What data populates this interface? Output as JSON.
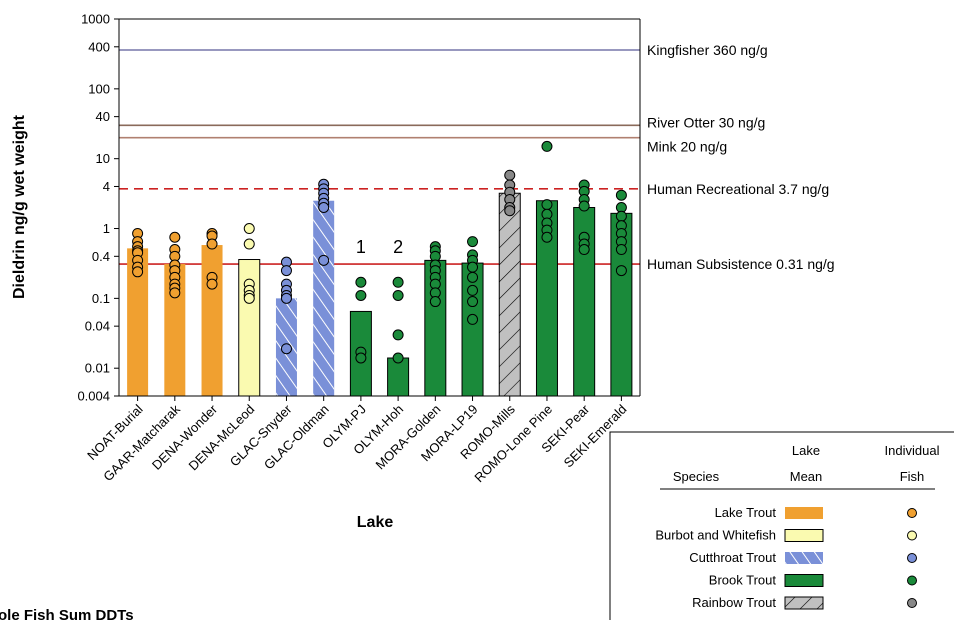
{
  "chart_data": {
    "type": "bar",
    "yscale": "log",
    "ylim": [
      0.004,
      1000
    ],
    "ylabel": "Dieldrin ng/g wet weight",
    "xlabel": "Lake",
    "yticks": [
      {
        "value": 0.004,
        "label": "0.004"
      },
      {
        "value": 0.01,
        "label": "0.01"
      },
      {
        "value": 0.04,
        "label": "0.04"
      },
      {
        "value": 0.1,
        "label": "0.1"
      },
      {
        "value": 0.4,
        "label": "0.4"
      },
      {
        "value": 1,
        "label": "1"
      },
      {
        "value": 4,
        "label": "4"
      },
      {
        "value": 10,
        "label": "10"
      },
      {
        "value": 40,
        "label": "40"
      },
      {
        "value": 100,
        "label": "100"
      },
      {
        "value": 400,
        "label": "400"
      },
      {
        "value": 1000,
        "label": "1000"
      }
    ],
    "categories": [
      "NOAT-Burial",
      "GAAR-Matcharak",
      "DENA-Wonder",
      "DENA-McLeod",
      "GLAC-Snyder",
      "GLAC-Oldman",
      "OLYM-PJ",
      "OLYM-Hoh",
      "MORA-Golden",
      "MORA-LP19",
      "ROMO-Mills",
      "ROMO-Lone Pine",
      "SEKI-Pear",
      "SEKI-Emerald"
    ],
    "bars": [
      {
        "lake": "NOAT-Burial",
        "species": "lake_trout",
        "mean": 0.52,
        "fish": [
          0.85,
          0.65,
          0.55,
          0.48,
          0.45,
          0.35,
          0.28,
          0.24
        ]
      },
      {
        "lake": "GAAR-Matcharak",
        "species": "lake_trout",
        "mean": 0.31,
        "fish": [
          0.75,
          0.5,
          0.4,
          0.3,
          0.25,
          0.2,
          0.16,
          0.14,
          0.12
        ]
      },
      {
        "lake": "DENA-Wonder",
        "species": "lake_trout",
        "mean": 0.58,
        "fish": [
          0.85,
          0.78,
          0.6,
          0.2,
          0.16
        ]
      },
      {
        "lake": "DENA-McLeod",
        "species": "burbot_whitefish",
        "mean": 0.36,
        "fish": [
          1.0,
          0.6,
          0.16,
          0.13,
          0.11,
          0.1
        ]
      },
      {
        "lake": "GLAC-Snyder",
        "species": "cutthroat_trout",
        "mean": 0.1,
        "fish": [
          0.33,
          0.25,
          0.16,
          0.13,
          0.11,
          0.1,
          0.019
        ]
      },
      {
        "lake": "GLAC-Oldman",
        "species": "cutthroat_trout",
        "mean": 2.5,
        "fish": [
          4.3,
          3.7,
          3.2,
          2.7,
          2.3,
          2.0,
          0.35
        ]
      },
      {
        "lake": "OLYM-PJ",
        "species": "brook_trout",
        "mean": 0.065,
        "fish": [
          0.17,
          0.11,
          0.017,
          0.014
        ]
      },
      {
        "lake": "OLYM-Hoh",
        "species": "brook_trout",
        "mean": 0.014,
        "fish": [
          0.17,
          0.11,
          0.03,
          0.014
        ]
      },
      {
        "lake": "MORA-Golden",
        "species": "brook_trout",
        "mean": 0.35,
        "fish": [
          0.55,
          0.48,
          0.4,
          0.3,
          0.25,
          0.2,
          0.16,
          0.12,
          0.09
        ]
      },
      {
        "lake": "MORA-LP19",
        "species": "brook_trout",
        "mean": 0.32,
        "fish": [
          0.65,
          0.42,
          0.35,
          0.28,
          0.2,
          0.13,
          0.09,
          0.05
        ]
      },
      {
        "lake": "ROMO-Mills",
        "species": "rainbow_trout",
        "mean": 3.2,
        "fish": [
          5.8,
          4.2,
          3.3,
          2.6,
          2.0,
          1.8
        ]
      },
      {
        "lake": "ROMO-Lone Pine",
        "species": "brook_trout",
        "mean": 2.5,
        "fish": [
          15,
          2.2,
          1.6,
          1.2,
          0.95,
          0.75
        ]
      },
      {
        "lake": "SEKI-Pear",
        "species": "brook_trout",
        "mean": 2.0,
        "fish": [
          4.2,
          3.4,
          2.6,
          2.1,
          0.75,
          0.6,
          0.5
        ]
      },
      {
        "lake": "SEKI-Emerald",
        "species": "brook_trout",
        "mean": 1.65,
        "fish": [
          3.0,
          2.0,
          1.5,
          1.1,
          0.85,
          0.65,
          0.5,
          0.25
        ]
      }
    ],
    "thresholds": [
      {
        "label": "Kingfisher 360 ng/g",
        "value": 360,
        "color": "#7777aa",
        "dash": false
      },
      {
        "label": "River Otter 30 ng/g",
        "value": 30,
        "color": "#8a6a5a",
        "dash": false
      },
      {
        "label": "Mink 20 ng/g",
        "value": 20,
        "color": "#b08070",
        "dash": false
      },
      {
        "label": "Human Recreational 3.7 ng/g",
        "value": 3.7,
        "color": "#cc2222",
        "dash": true
      },
      {
        "label": "Human Subsistence 0.31 ng/g",
        "value": 0.31,
        "color": "#cc2222",
        "dash": false
      }
    ],
    "annotations": [
      {
        "text": "1",
        "lake": "OLYM-PJ"
      },
      {
        "text": "2",
        "lake": "OLYM-Hoh"
      }
    ],
    "species": {
      "lake_trout": {
        "name": "Lake Trout",
        "fill": "#f0a030",
        "dot": "#f0a030",
        "hatch": false
      },
      "burbot_whitefish": {
        "name": "Burbot and Whitefish",
        "fill": "#fafab0",
        "dot": "#fafab0",
        "hatch": false
      },
      "cutthroat_trout": {
        "name": "Cutthroat Trout",
        "fill": "#7a90d8",
        "dot": "#7a90d8",
        "hatch": true
      },
      "brook_trout": {
        "name": "Brook Trout",
        "fill": "#1a8a3a",
        "dot": "#1a8a3a",
        "hatch": false
      },
      "rainbow_trout": {
        "name": "Rainbow Trout",
        "fill": "#c0c0c0",
        "dot": "#888888",
        "hatch": true
      }
    },
    "legend": {
      "placement": "bottom-right",
      "species_header": "Species",
      "mean_header": [
        "Lake",
        "Mean"
      ],
      "fish_header": [
        "Individual",
        "Fish"
      ],
      "order": [
        "lake_trout",
        "burbot_whitefish",
        "cutthroat_trout",
        "brook_trout",
        "rainbow_trout"
      ]
    },
    "cutoff_title": "ole Fish Sum DDTs",
    "grid": false
  }
}
